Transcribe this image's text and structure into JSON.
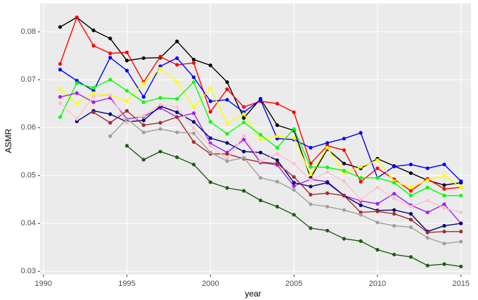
{
  "chart_data": {
    "type": "line",
    "x_label": "year",
    "y_label": "ASMR",
    "x": [
      1991,
      1992,
      1993,
      1994,
      1995,
      1996,
      1997,
      1998,
      1999,
      2000,
      2001,
      2002,
      2003,
      2004,
      2005,
      2006,
      2007,
      2008,
      2009,
      2010,
      2011,
      2012,
      2013,
      2014,
      2015
    ],
    "xlim": [
      1989.8,
      2015.6
    ],
    "xticks": [
      1990,
      1995,
      2000,
      2005,
      2010,
      2015
    ],
    "ylim": [
      0.0293,
      0.0859
    ],
    "yticks": [
      0.03,
      0.04,
      0.05,
      0.06,
      0.07,
      0.08
    ],
    "grid": true,
    "series": [
      {
        "color": "#000000",
        "values": [
          0.081,
          0.083,
          0.0803,
          0.0786,
          0.074,
          0.0745,
          0.0746,
          0.078,
          0.0742,
          0.073,
          0.0695,
          0.062,
          0.066,
          0.0605,
          0.0594,
          0.0495,
          0.0555,
          0.0525,
          0.0515,
          0.0535,
          0.052,
          0.0505,
          0.049,
          0.048,
          0.0485
        ]
      },
      {
        "color": "#ff0000",
        "values": [
          0.0733,
          0.083,
          0.0771,
          0.0755,
          0.0757,
          0.0695,
          0.0748,
          0.0731,
          0.0735,
          0.0633,
          0.068,
          0.0643,
          0.0655,
          0.065,
          0.0632,
          0.0525,
          0.0562,
          0.0553,
          0.0487,
          0.0515,
          0.0492,
          0.0468,
          0.0493,
          0.0472,
          0.0475
        ]
      },
      {
        "color": "#0000ff",
        "values": [
          0.0721,
          0.0698,
          0.0677,
          0.0746,
          0.0719,
          0.0664,
          0.0728,
          0.0745,
          0.0705,
          0.0655,
          0.0658,
          0.0632,
          0.0658,
          0.0577,
          0.0575,
          0.0558,
          0.0568,
          0.0577,
          0.0589,
          0.0495,
          0.0519,
          0.0523,
          0.0515,
          0.0523,
          0.0488
        ]
      },
      {
        "color": "#ffff00",
        "values": [
          0.068,
          0.065,
          0.0672,
          0.0668,
          0.0655,
          0.0692,
          0.0723,
          0.0695,
          0.0643,
          0.0682,
          0.061,
          0.0628,
          0.0575,
          0.0582,
          0.0578,
          0.0502,
          0.0558,
          0.0505,
          0.0518,
          0.0532,
          0.0488,
          0.0475,
          0.049,
          0.05,
          0.0475
        ]
      },
      {
        "color": "#00ff00",
        "values": [
          0.0622,
          0.0693,
          0.0683,
          0.07,
          0.0677,
          0.0653,
          0.0662,
          0.066,
          0.0695,
          0.0612,
          0.0587,
          0.0611,
          0.0585,
          0.0558,
          0.0597,
          0.0518,
          0.0517,
          0.051,
          0.0495,
          0.0495,
          0.0485,
          0.0458,
          0.0475,
          0.0458,
          0.0458
        ]
      },
      {
        "color": "#a020f0",
        "values": [
          0.0664,
          0.0672,
          0.0653,
          0.0662,
          0.0618,
          0.0623,
          0.0641,
          0.0622,
          0.063,
          0.0567,
          0.0548,
          0.0575,
          0.0527,
          0.0522,
          0.0478,
          0.0492,
          0.0487,
          0.0458,
          0.0447,
          0.0441,
          0.0462,
          0.0438,
          0.0423,
          0.044,
          0.04
        ]
      },
      {
        "color": "#000080",
        "values": [
          null,
          0.0613,
          0.0635,
          0.0628,
          0.0612,
          0.0615,
          0.0645,
          0.0632,
          0.0612,
          0.0578,
          0.0568,
          0.055,
          0.0548,
          0.0532,
          0.0485,
          0.0477,
          0.0485,
          0.0458,
          0.0438,
          0.0427,
          0.0428,
          0.042,
          0.0383,
          0.0395,
          0.04
        ]
      },
      {
        "color": "#a52a2a",
        "values": [
          null,
          null,
          0.0632,
          0.061,
          0.0635,
          0.0605,
          0.061,
          0.0622,
          0.057,
          0.0545,
          0.0545,
          0.0535,
          0.0528,
          0.0525,
          0.0497,
          0.046,
          0.0463,
          0.0458,
          0.0423,
          0.0425,
          0.042,
          0.0408,
          0.0381,
          0.0383,
          0.0383
        ]
      },
      {
        "color": "#ffc0cb",
        "values": [
          0.0651,
          0.0618,
          0.0665,
          0.0668,
          0.061,
          0.0625,
          0.0648,
          0.0643,
          0.0598,
          0.0562,
          0.0535,
          0.0583,
          0.053,
          0.0545,
          0.0525,
          0.049,
          0.0507,
          0.0488,
          0.045,
          0.0475,
          0.0452,
          0.0435,
          0.0448,
          0.0432,
          0.0423
        ]
      },
      {
        "color": "#a0a0a0",
        "values": [
          null,
          null,
          null,
          0.0582,
          0.0618,
          0.059,
          0.0597,
          0.059,
          0.0588,
          0.0548,
          0.053,
          0.0537,
          0.0495,
          0.0487,
          0.047,
          0.044,
          0.0435,
          0.0428,
          0.0418,
          0.0402,
          0.0395,
          0.0392,
          0.037,
          0.0358,
          0.0362
        ]
      },
      {
        "color": "#1a5e0f",
        "values": [
          null,
          null,
          null,
          null,
          0.0562,
          0.0533,
          0.055,
          0.0538,
          0.0523,
          0.0486,
          0.0474,
          0.0468,
          0.0448,
          0.0435,
          0.0418,
          0.039,
          0.0385,
          0.0368,
          0.0363,
          0.0345,
          0.0335,
          0.033,
          0.0312,
          0.0315,
          0.031
        ]
      }
    ]
  }
}
